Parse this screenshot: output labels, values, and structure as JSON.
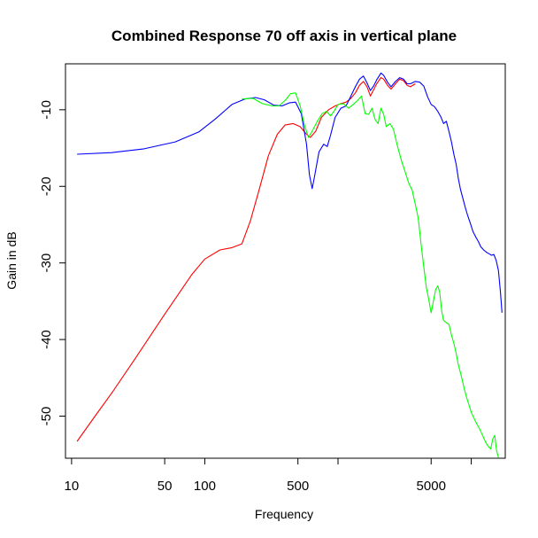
{
  "chart_data": {
    "type": "line",
    "title": "Combined Response  70 off axis in vertical plane",
    "xlabel": "Frequency",
    "ylabel": "Gain in dB",
    "x_scale": "log",
    "xlim": [
      9,
      18000
    ],
    "ylim": [
      -55.5,
      -4
    ],
    "x_ticks": [
      10,
      50,
      100,
      500,
      1000,
      5000,
      10000
    ],
    "x_tick_labels": [
      "10",
      "50",
      "100",
      "500",
      "",
      "5000",
      ""
    ],
    "y_ticks": [
      -10,
      -20,
      -30,
      -40,
      -50
    ],
    "y_tick_labels": [
      "-10",
      "-20",
      "-30",
      "-40",
      "-50"
    ],
    "grid": false,
    "legend": "none",
    "series": [
      {
        "color": "#ff0000",
        "points": [
          [
            11,
            -53.3
          ],
          [
            15,
            -50.0
          ],
          [
            20,
            -47.0
          ],
          [
            30,
            -42.5
          ],
          [
            50,
            -36.7
          ],
          [
            80,
            -31.5
          ],
          [
            100,
            -29.5
          ],
          [
            130,
            -28.3
          ],
          [
            160,
            -28.0
          ],
          [
            190,
            -27.5
          ],
          [
            220,
            -24.5
          ],
          [
            260,
            -20.0
          ],
          [
            300,
            -16.0
          ],
          [
            350,
            -13.2
          ],
          [
            400,
            -12.0
          ],
          [
            460,
            -11.8
          ],
          [
            520,
            -12.2
          ],
          [
            580,
            -13.2
          ],
          [
            620,
            -13.6
          ],
          [
            680,
            -12.8
          ],
          [
            750,
            -11.0
          ],
          [
            850,
            -10.0
          ],
          [
            950,
            -9.5
          ],
          [
            1050,
            -9.2
          ],
          [
            1150,
            -9.0
          ],
          [
            1250,
            -8.5
          ],
          [
            1350,
            -7.8
          ],
          [
            1450,
            -6.8
          ],
          [
            1550,
            -6.3
          ],
          [
            1650,
            -7.0
          ],
          [
            1750,
            -8.2
          ],
          [
            1850,
            -7.4
          ],
          [
            1950,
            -6.6
          ],
          [
            2100,
            -5.8
          ],
          [
            2200,
            -6.0
          ],
          [
            2350,
            -6.8
          ],
          [
            2500,
            -7.3
          ],
          [
            2700,
            -6.6
          ],
          [
            2900,
            -6.0
          ],
          [
            3100,
            -6.2
          ],
          [
            3300,
            -6.8
          ],
          [
            3500,
            -7.0
          ],
          [
            3800,
            -6.6
          ]
        ]
      },
      {
        "color": "#0000ff",
        "points": [
          [
            11,
            -15.8
          ],
          [
            20,
            -15.6
          ],
          [
            35,
            -15.1
          ],
          [
            60,
            -14.2
          ],
          [
            90,
            -12.9
          ],
          [
            120,
            -11.2
          ],
          [
            160,
            -9.3
          ],
          [
            200,
            -8.6
          ],
          [
            240,
            -8.4
          ],
          [
            280,
            -8.7
          ],
          [
            330,
            -9.4
          ],
          [
            380,
            -9.5
          ],
          [
            430,
            -9.1
          ],
          [
            480,
            -9.0
          ],
          [
            530,
            -10.5
          ],
          [
            580,
            -14.5
          ],
          [
            610,
            -18.5
          ],
          [
            640,
            -20.3
          ],
          [
            670,
            -18.5
          ],
          [
            720,
            -15.5
          ],
          [
            780,
            -14.5
          ],
          [
            830,
            -14.8
          ],
          [
            880,
            -13.3
          ],
          [
            950,
            -11.0
          ],
          [
            1050,
            -9.8
          ],
          [
            1150,
            -9.5
          ],
          [
            1250,
            -8.2
          ],
          [
            1350,
            -7.0
          ],
          [
            1450,
            -6.0
          ],
          [
            1550,
            -5.6
          ],
          [
            1650,
            -6.5
          ],
          [
            1750,
            -7.5
          ],
          [
            1850,
            -6.9
          ],
          [
            1950,
            -6.1
          ],
          [
            2100,
            -5.2
          ],
          [
            2200,
            -5.5
          ],
          [
            2350,
            -6.4
          ],
          [
            2500,
            -7.0
          ],
          [
            2700,
            -6.3
          ],
          [
            2900,
            -5.8
          ],
          [
            3100,
            -6.0
          ],
          [
            3300,
            -6.6
          ],
          [
            3500,
            -6.6
          ],
          [
            3800,
            -6.3
          ],
          [
            4100,
            -6.4
          ],
          [
            4400,
            -6.9
          ],
          [
            4700,
            -8.3
          ],
          [
            5000,
            -9.3
          ],
          [
            5300,
            -9.6
          ],
          [
            5600,
            -10.2
          ],
          [
            5900,
            -10.9
          ],
          [
            6200,
            -11.8
          ],
          [
            6500,
            -11.5
          ],
          [
            6800,
            -12.8
          ],
          [
            7100,
            -14.2
          ],
          [
            7400,
            -15.8
          ],
          [
            7700,
            -17.1
          ],
          [
            8000,
            -19.0
          ],
          [
            8300,
            -20.4
          ],
          [
            8600,
            -21.4
          ],
          [
            9000,
            -22.7
          ],
          [
            9400,
            -23.8
          ],
          [
            9800,
            -24.7
          ],
          [
            10300,
            -25.9
          ],
          [
            10800,
            -26.6
          ],
          [
            11300,
            -27.2
          ],
          [
            11800,
            -27.9
          ],
          [
            12400,
            -28.3
          ],
          [
            13000,
            -28.6
          ],
          [
            13600,
            -28.8
          ],
          [
            14200,
            -29.0
          ],
          [
            14800,
            -28.9
          ],
          [
            15400,
            -29.7
          ],
          [
            16000,
            -31.0
          ],
          [
            16600,
            -34.0
          ],
          [
            17000,
            -36.5
          ]
        ]
      },
      {
        "color": "#00ff00",
        "points": [
          [
            190,
            -8.6
          ],
          [
            230,
            -8.5
          ],
          [
            270,
            -9.2
          ],
          [
            320,
            -9.5
          ],
          [
            360,
            -9.5
          ],
          [
            400,
            -8.8
          ],
          [
            440,
            -7.9
          ],
          [
            480,
            -7.8
          ],
          [
            520,
            -9.5
          ],
          [
            560,
            -12.0
          ],
          [
            600,
            -13.6
          ],
          [
            640,
            -12.8
          ],
          [
            700,
            -11.5
          ],
          [
            760,
            -10.5
          ],
          [
            820,
            -10.2
          ],
          [
            880,
            -10.8
          ],
          [
            940,
            -10.1
          ],
          [
            1000,
            -9.3
          ],
          [
            1100,
            -9.2
          ],
          [
            1200,
            -9.8
          ],
          [
            1300,
            -9.3
          ],
          [
            1400,
            -8.8
          ],
          [
            1500,
            -8.2
          ],
          [
            1600,
            -10.5
          ],
          [
            1700,
            -10.6
          ],
          [
            1800,
            -9.8
          ],
          [
            1900,
            -11.3
          ],
          [
            2000,
            -11.8
          ],
          [
            2100,
            -9.8
          ],
          [
            2200,
            -10.6
          ],
          [
            2300,
            -12.2
          ],
          [
            2450,
            -11.8
          ],
          [
            2600,
            -12.5
          ],
          [
            2800,
            -14.8
          ],
          [
            3000,
            -16.7
          ],
          [
            3200,
            -18.2
          ],
          [
            3400,
            -19.6
          ],
          [
            3600,
            -20.5
          ],
          [
            3800,
            -22.3
          ],
          [
            4000,
            -24.2
          ],
          [
            4200,
            -27.5
          ],
          [
            4400,
            -30.5
          ],
          [
            4600,
            -33.2
          ],
          [
            4800,
            -34.8
          ],
          [
            5000,
            -36.5
          ],
          [
            5200,
            -35.0
          ],
          [
            5400,
            -33.5
          ],
          [
            5600,
            -33.0
          ],
          [
            5800,
            -33.8
          ],
          [
            6000,
            -36.3
          ],
          [
            6200,
            -37.5
          ],
          [
            6500,
            -37.8
          ],
          [
            6800,
            -38.0
          ],
          [
            7100,
            -39.4
          ],
          [
            7400,
            -40.5
          ],
          [
            7700,
            -41.8
          ],
          [
            8000,
            -43.3
          ],
          [
            8400,
            -44.7
          ],
          [
            8800,
            -46.2
          ],
          [
            9200,
            -47.5
          ],
          [
            9600,
            -48.5
          ],
          [
            10000,
            -49.5
          ],
          [
            10500,
            -50.3
          ],
          [
            11000,
            -51.0
          ],
          [
            11500,
            -51.6
          ],
          [
            12000,
            -52.3
          ],
          [
            12500,
            -53.0
          ],
          [
            13000,
            -53.6
          ],
          [
            13500,
            -54.0
          ],
          [
            14000,
            -54.3
          ],
          [
            14500,
            -53.0
          ],
          [
            15000,
            -52.5
          ],
          [
            15500,
            -54.5
          ],
          [
            16000,
            -55.4
          ]
        ]
      }
    ]
  }
}
